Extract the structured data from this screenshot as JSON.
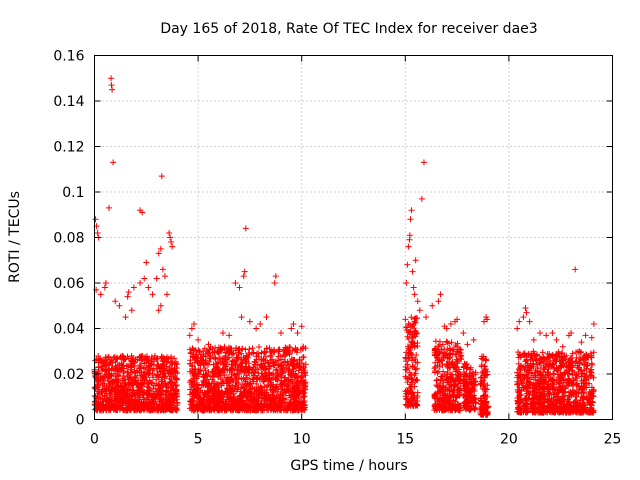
{
  "chart_data": {
    "type": "scatter",
    "title": "Day 165 of 2018, Rate Of TEC Index for receiver dae3",
    "xlabel": "GPS time / hours",
    "ylabel": "ROTI / TECUs",
    "xlim": [
      0,
      25
    ],
    "ylim": [
      0,
      0.16
    ],
    "xticks": [
      0,
      5,
      10,
      15,
      20,
      25
    ],
    "xtick_labels": [
      "0",
      "5",
      "10",
      "15",
      "20",
      "25"
    ],
    "yticks": [
      0,
      0.02,
      0.04,
      0.06,
      0.08,
      0.1,
      0.12,
      0.14,
      0.16
    ],
    "ytick_labels": [
      "0",
      "0.02",
      "0.04",
      "0.06",
      "0.08",
      "0.1",
      "0.12",
      "0.14",
      "0.16"
    ],
    "grid": true,
    "marker": "+",
    "color": "#ff0000",
    "series": [
      {
        "name": "ROTI",
        "points": [
          [
            0.05,
            0.088
          ],
          [
            0.1,
            0.085
          ],
          [
            0.15,
            0.082
          ],
          [
            0.2,
            0.08
          ],
          [
            0.08,
            0.057
          ],
          [
            0.3,
            0.055
          ],
          [
            0.5,
            0.058
          ],
          [
            0.55,
            0.06
          ],
          [
            0.7,
            0.093
          ],
          [
            0.8,
            0.15
          ],
          [
            0.82,
            0.147
          ],
          [
            0.85,
            0.145
          ],
          [
            0.9,
            0.113
          ],
          [
            1.0,
            0.052
          ],
          [
            1.2,
            0.05
          ],
          [
            1.5,
            0.045
          ],
          [
            1.6,
            0.054
          ],
          [
            1.65,
            0.056
          ],
          [
            1.8,
            0.048
          ],
          [
            1.9,
            0.058
          ],
          [
            2.2,
            0.092
          ],
          [
            2.3,
            0.091
          ],
          [
            2.2,
            0.06
          ],
          [
            2.4,
            0.062
          ],
          [
            2.5,
            0.069
          ],
          [
            2.6,
            0.058
          ],
          [
            2.8,
            0.055
          ],
          [
            3.0,
            0.062
          ],
          [
            3.1,
            0.073
          ],
          [
            3.2,
            0.075
          ],
          [
            3.25,
            0.107
          ],
          [
            3.3,
            0.066
          ],
          [
            3.4,
            0.063
          ],
          [
            3.1,
            0.048
          ],
          [
            3.2,
            0.05
          ],
          [
            3.5,
            0.055
          ],
          [
            3.6,
            0.082
          ],
          [
            3.65,
            0.08
          ],
          [
            3.7,
            0.078
          ],
          [
            3.75,
            0.076
          ],
          [
            4.6,
            0.037
          ],
          [
            4.7,
            0.04
          ],
          [
            4.8,
            0.042
          ],
          [
            5.0,
            0.035
          ],
          [
            5.5,
            0.033
          ],
          [
            6.0,
            0.03
          ],
          [
            6.2,
            0.038
          ],
          [
            6.5,
            0.037
          ],
          [
            6.8,
            0.06
          ],
          [
            7.0,
            0.058
          ],
          [
            7.1,
            0.045
          ],
          [
            7.2,
            0.063
          ],
          [
            7.25,
            0.065
          ],
          [
            7.3,
            0.084
          ],
          [
            7.5,
            0.043
          ],
          [
            7.8,
            0.04
          ],
          [
            8.0,
            0.042
          ],
          [
            8.3,
            0.045
          ],
          [
            8.7,
            0.06
          ],
          [
            8.75,
            0.063
          ],
          [
            9.0,
            0.038
          ],
          [
            9.5,
            0.04
          ],
          [
            9.6,
            0.042
          ],
          [
            9.8,
            0.038
          ],
          [
            10.0,
            0.041
          ],
          [
            15.05,
            0.06
          ],
          [
            15.1,
            0.068
          ],
          [
            15.15,
            0.076
          ],
          [
            15.2,
            0.079
          ],
          [
            15.22,
            0.081
          ],
          [
            15.25,
            0.088
          ],
          [
            15.3,
            0.092
          ],
          [
            15.35,
            0.065
          ],
          [
            15.4,
            0.058
          ],
          [
            15.45,
            0.055
          ],
          [
            15.5,
            0.07
          ],
          [
            15.8,
            0.097
          ],
          [
            15.9,
            0.113
          ],
          [
            15.6,
            0.052
          ],
          [
            15.7,
            0.048
          ],
          [
            16.0,
            0.045
          ],
          [
            16.3,
            0.05
          ],
          [
            16.6,
            0.052
          ],
          [
            16.7,
            0.055
          ],
          [
            16.9,
            0.041
          ],
          [
            17.0,
            0.04
          ],
          [
            17.2,
            0.042
          ],
          [
            17.4,
            0.043
          ],
          [
            17.5,
            0.044
          ],
          [
            17.8,
            0.038
          ],
          [
            18.0,
            0.033
          ],
          [
            18.3,
            0.035
          ],
          [
            18.8,
            0.043
          ],
          [
            18.9,
            0.045
          ],
          [
            18.95,
            0.044
          ],
          [
            20.4,
            0.04
          ],
          [
            20.5,
            0.043
          ],
          [
            20.7,
            0.045
          ],
          [
            20.8,
            0.049
          ],
          [
            20.85,
            0.047
          ],
          [
            21.0,
            0.043
          ],
          [
            21.2,
            0.035
          ],
          [
            21.5,
            0.038
          ],
          [
            21.8,
            0.037
          ],
          [
            22.1,
            0.038
          ],
          [
            22.3,
            0.035
          ],
          [
            22.6,
            0.032
          ],
          [
            22.9,
            0.037
          ],
          [
            23.0,
            0.038
          ],
          [
            23.2,
            0.066
          ],
          [
            23.4,
            0.03
          ],
          [
            23.5,
            0.034
          ],
          [
            23.7,
            0.037
          ],
          [
            24.0,
            0.036
          ],
          [
            24.1,
            0.042
          ]
        ],
        "dense_bands": [
          {
            "x": [
              0.0,
              4.0
            ],
            "y": [
              0.004,
              0.028
            ]
          },
          {
            "x": [
              4.6,
              10.2
            ],
            "y": [
              0.004,
              0.032
            ]
          },
          {
            "x": [
              15.0,
              15.6
            ],
            "y": [
              0.006,
              0.045
            ]
          },
          {
            "x": [
              16.4,
              17.7
            ],
            "y": [
              0.004,
              0.035
            ]
          },
          {
            "x": [
              17.8,
              18.4
            ],
            "y": [
              0.004,
              0.025
            ]
          },
          {
            "x": [
              18.6,
              19.0
            ],
            "y": [
              0.002,
              0.028
            ]
          },
          {
            "x": [
              20.4,
              24.1
            ],
            "y": [
              0.003,
              0.03
            ]
          }
        ]
      }
    ]
  }
}
